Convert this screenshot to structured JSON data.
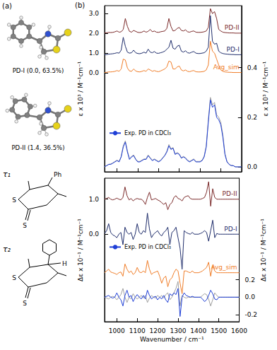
{
  "panel_a": {
    "label": "(a)",
    "conformers": [
      "PD-I (0.0, 63.5%)",
      "PD-II (1.4, 36.5%)"
    ],
    "torsions": [
      {
        "label": "τ₁",
        "atoms": [
          "Ph",
          "S",
          "S"
        ]
      },
      {
        "label": "τ₂",
        "atoms": [
          "H",
          "S",
          "S"
        ]
      }
    ]
  },
  "panel_b_label": "(b)",
  "chart_data": [
    {
      "type": "line",
      "x": [
        940,
        950,
        960,
        970,
        980,
        990,
        1000,
        1010,
        1020,
        1030,
        1040,
        1050,
        1060,
        1070,
        1080,
        1090,
        1100,
        1110,
        1120,
        1130,
        1140,
        1150,
        1160,
        1170,
        1180,
        1190,
        1200,
        1210,
        1220,
        1230,
        1240,
        1250,
        1260,
        1270,
        1280,
        1290,
        1300,
        1310,
        1320,
        1330,
        1340,
        1350,
        1360,
        1370,
        1380,
        1390,
        1400,
        1410,
        1420,
        1430,
        1440,
        1450,
        1460,
        1470,
        1480,
        1490,
        1500,
        1510,
        1520,
        1530,
        1540,
        1550,
        1560,
        1570,
        1580,
        1590,
        1600
      ],
      "xlim": [
        940,
        1600
      ],
      "xticks": [
        1000,
        1100,
        1200,
        1300,
        1400,
        1500,
        1600
      ],
      "ylim": [
        -5.0,
        3.4
      ],
      "yticks": [
        {
          "value": 0,
          "label": "0.0"
        },
        {
          "value": 1,
          "label": "1.0"
        },
        {
          "value": 2,
          "label": "2.0"
        },
        {
          "value": 3,
          "label": "3.0"
        }
      ],
      "y2lim": [
        -0.02,
        0.65
      ],
      "y2ticks": [
        {
          "value": 0,
          "label": "0.0"
        },
        {
          "value": 0.2,
          "label": "0.2"
        },
        {
          "value": 0.4,
          "label": "0.4"
        }
      ],
      "ylabel": "ε x 10³ / M⁻¹cm⁻¹",
      "y2label": "ε x 10³ / M⁻¹cm⁻¹",
      "tick_labels": "y",
      "grid": false,
      "legend": "lower left",
      "series": [
        {
          "name": "PD-II",
          "color": "#7b2a2a",
          "values": [
            2.02,
            2.03,
            2.05,
            2.04,
            2.05,
            2.08,
            2.12,
            2.06,
            2.08,
            2.2,
            2.75,
            2.35,
            2.1,
            2.06,
            2.15,
            2.1,
            2.05,
            2.04,
            2.06,
            2.12,
            2.06,
            2.1,
            2.2,
            2.08,
            2.12,
            2.06,
            2.05,
            2.08,
            2.1,
            2.12,
            2.25,
            2.75,
            2.35,
            2.12,
            2.15,
            2.25,
            2.3,
            2.15,
            2.12,
            2.18,
            2.08,
            2.06,
            2.1,
            2.12,
            2.06,
            2.05,
            2.05,
            2.06,
            2.08,
            2.12,
            2.3,
            3.25,
            3.0,
            3.1,
            2.75,
            2.2,
            2.12,
            2.06,
            2.04,
            2.03,
            2.02,
            2.02,
            2.02,
            2.01,
            2.01,
            2.01,
            2.01
          ]
        },
        {
          "name": "PD-I",
          "color": "#1f2d6b",
          "values": [
            0.92,
            0.93,
            0.95,
            0.96,
            0.97,
            0.99,
            1.02,
            1.0,
            1.15,
            1.8,
            1.35,
            1.05,
            1.0,
            1.02,
            1.15,
            1.02,
            0.98,
            0.97,
            1.0,
            1.05,
            1.0,
            1.2,
            1.05,
            1.02,
            1.08,
            1.0,
            0.99,
            1.02,
            1.05,
            1.1,
            1.2,
            1.3,
            1.65,
            1.25,
            1.2,
            1.35,
            1.4,
            1.1,
            1.05,
            1.12,
            1.02,
            1.0,
            1.05,
            1.08,
            1.0,
            0.98,
            0.98,
            1.0,
            1.02,
            1.1,
            1.3,
            2.9,
            1.6,
            1.45,
            1.5,
            1.1,
            1.02,
            0.98,
            0.96,
            0.95,
            0.94,
            0.93,
            0.93,
            0.92,
            0.92,
            0.92,
            0.92
          ]
        },
        {
          "name": "Avg_sim",
          "color": "#f07d28",
          "values": [
            0.02,
            0.03,
            0.05,
            0.05,
            0.06,
            0.08,
            0.12,
            0.08,
            0.2,
            0.7,
            0.65,
            0.25,
            0.1,
            0.08,
            0.2,
            0.1,
            0.06,
            0.05,
            0.08,
            0.12,
            0.08,
            0.2,
            0.15,
            0.08,
            0.12,
            0.08,
            0.06,
            0.1,
            0.15,
            0.2,
            0.3,
            0.6,
            0.55,
            0.2,
            0.2,
            0.3,
            0.35,
            0.15,
            0.1,
            0.15,
            0.08,
            0.06,
            0.1,
            0.12,
            0.06,
            0.05,
            0.05,
            0.06,
            0.08,
            0.15,
            0.4,
            1.6,
            1.1,
            1.0,
            0.7,
            0.4,
            0.15,
            0.08,
            0.05,
            0.04,
            0.03,
            0.03,
            0.02,
            0.02,
            0.02,
            0.02,
            0.02
          ]
        },
        {
          "color": "#a0a0a0",
          "axis": "y2",
          "values": [
            0.0,
            0.005,
            0.01,
            0.012,
            0.016,
            0.022,
            0.027,
            0.022,
            0.042,
            0.085,
            0.105,
            0.065,
            0.032,
            0.042,
            0.048,
            0.032,
            0.022,
            0.022,
            0.027,
            0.032,
            0.032,
            0.048,
            0.037,
            0.027,
            0.032,
            0.027,
            0.022,
            0.027,
            0.037,
            0.047,
            0.063,
            0.09,
            0.073,
            0.078,
            0.052,
            0.058,
            0.052,
            0.037,
            0.042,
            0.037,
            0.027,
            0.022,
            0.027,
            0.032,
            0.022,
            0.022,
            0.022,
            0.027,
            0.043,
            0.085,
            0.19,
            0.28,
            0.25,
            0.26,
            0.21,
            0.2,
            0.18,
            0.13,
            0.055,
            0.022,
            0.011,
            0.006,
            0.005,
            0.0,
            0.0,
            0.0,
            0.0
          ]
        },
        {
          "name": "Exp. PD in CDCl₃",
          "color": "#1f3fd6",
          "axis": "y2",
          "values": [
            0.0,
            0.005,
            0.01,
            0.01,
            0.015,
            0.02,
            0.025,
            0.02,
            0.04,
            0.08,
            0.1,
            0.06,
            0.03,
            0.04,
            0.045,
            0.03,
            0.02,
            0.02,
            0.025,
            0.03,
            0.03,
            0.045,
            0.035,
            0.025,
            0.03,
            0.025,
            0.02,
            0.025,
            0.035,
            0.045,
            0.06,
            0.085,
            0.07,
            0.075,
            0.05,
            0.055,
            0.05,
            0.035,
            0.04,
            0.035,
            0.025,
            0.02,
            0.025,
            0.03,
            0.02,
            0.02,
            0.02,
            0.025,
            0.04,
            0.08,
            0.18,
            0.27,
            0.24,
            0.25,
            0.2,
            0.19,
            0.17,
            0.12,
            0.05,
            0.02,
            0.01,
            0.005,
            0.005,
            0.0,
            0.0,
            0.0,
            0.0
          ]
        }
      ]
    },
    {
      "type": "line",
      "x": [
        940,
        950,
        960,
        970,
        980,
        990,
        1000,
        1010,
        1020,
        1030,
        1040,
        1050,
        1060,
        1070,
        1080,
        1090,
        1100,
        1110,
        1120,
        1130,
        1140,
        1150,
        1160,
        1170,
        1180,
        1190,
        1200,
        1210,
        1220,
        1230,
        1240,
        1250,
        1260,
        1270,
        1280,
        1290,
        1300,
        1310,
        1320,
        1330,
        1340,
        1350,
        1360,
        1370,
        1380,
        1390,
        1400,
        1410,
        1420,
        1430,
        1440,
        1450,
        1460,
        1470,
        1480,
        1490,
        1500,
        1510,
        1520,
        1530,
        1540,
        1550,
        1560,
        1570,
        1580,
        1590,
        1600
      ],
      "xlim": [
        940,
        1600
      ],
      "xticks": [
        1000,
        1100,
        1200,
        1300,
        1400,
        1500,
        1600
      ],
      "xlabel": "Wavenumber / cm⁻¹",
      "ylim": [
        -2.5,
        1.6
      ],
      "yticks": [
        {
          "value": 0,
          "label": "0.0"
        },
        {
          "value": 1,
          "label": "1.0"
        }
      ],
      "y2lim": [
        -0.28,
        1.36
      ],
      "y2ticks": [
        {
          "value": -0.2,
          "label": "-0.2"
        },
        {
          "value": 0,
          "label": "0.0"
        },
        {
          "value": 0.2,
          "label": "0.2"
        }
      ],
      "ylabel": "Δε x 10⁻¹ / M⁻¹cm⁻¹",
      "y2label": "Δε x 10⁻¹ / M⁻¹cm⁻¹",
      "grid": false,
      "legend": "left",
      "series": [
        {
          "name": "PD-II",
          "color": "#7b2a2a",
          "values": [
            1.0,
            1.02,
            1.05,
            1.0,
            0.98,
            1.0,
            1.03,
            1.0,
            0.98,
            1.05,
            1.35,
            1.1,
            0.98,
            1.02,
            0.95,
            1.0,
            1.02,
            1.0,
            1.0,
            0.95,
            0.85,
            1.05,
            1.2,
            0.98,
            1.0,
            1.02,
            0.98,
            0.95,
            0.9,
            0.85,
            0.9,
            0.7,
            0.85,
            0.9,
            1.05,
            1.1,
            1.02,
            1.0,
            0.95,
            1.05,
            1.08,
            1.1,
            1.02,
            1.0,
            1.0,
            1.0,
            1.0,
            1.0,
            1.02,
            1.05,
            1.2,
            1.5,
            0.8,
            1.3,
            1.05,
            1.0,
            1.0,
            1.0,
            1.0,
            1.0,
            1.0,
            1.0,
            1.0,
            1.0,
            1.0,
            1.0,
            1.0
          ]
        },
        {
          "name": "PD-I",
          "color": "#1f2d6b",
          "values": [
            0.02,
            0.1,
            0.3,
            0.05,
            -0.02,
            -0.05,
            -0.1,
            0.0,
            0.05,
            -0.3,
            0.2,
            0.05,
            0.0,
            0.05,
            -0.15,
            0.0,
            0.3,
            0.05,
            0.0,
            0.1,
            0.05,
            0.6,
            0.15,
            -0.1,
            0.0,
            0.05,
            0.1,
            0.0,
            -0.05,
            0.05,
            0.1,
            0.2,
            -0.3,
            0.05,
            0.1,
            0.2,
            -0.1,
            -0.4,
            -1.0,
            0.1,
            0.05,
            0.02,
            0.0,
            0.05,
            0.0,
            0.0,
            0.0,
            0.02,
            0.05,
            0.1,
            0.05,
            -0.2,
            0.1,
            0.4,
            -0.1,
            0.02,
            0.0,
            0.0,
            0.0,
            0.0,
            0.0,
            0.0,
            0.0,
            0.0,
            0.0,
            0.0,
            0.0
          ]
        },
        {
          "name": "Avg_sim",
          "color": "#f07d28",
          "values": [
            -1.1,
            -1.05,
            -1.0,
            -1.08,
            -1.1,
            -1.12,
            -1.15,
            -1.1,
            -1.08,
            -1.2,
            -0.85,
            -1.0,
            -1.1,
            -1.05,
            -1.15,
            -1.1,
            -0.95,
            -1.08,
            -1.1,
            -1.05,
            -1.1,
            -0.75,
            -1.0,
            -1.15,
            -1.1,
            -1.08,
            -1.05,
            -1.2,
            -1.4,
            -1.25,
            -1.2,
            -1.5,
            -1.3,
            -1.25,
            -1.1,
            -1.0,
            -1.05,
            -1.4,
            -1.7,
            -1.05,
            -1.05,
            -1.08,
            -1.1,
            -1.05,
            -1.1,
            -1.1,
            -1.1,
            -1.08,
            -1.05,
            -1.0,
            -0.95,
            -0.8,
            -1.2,
            -0.9,
            -1.05,
            -1.1,
            -1.1,
            -1.1,
            -1.1,
            -1.1,
            -1.1,
            -1.1,
            -1.1,
            -1.1,
            -1.1,
            -1.1,
            -1.1
          ]
        },
        {
          "color": "#a0a0a0",
          "axis": "y2",
          "values": [
            0.0,
            -0.01,
            -0.02,
            0.0,
            0.01,
            0.0,
            -0.03,
            0.0,
            0.03,
            0.1,
            0.0,
            -0.06,
            0.0,
            -0.02,
            0.04,
            0.0,
            -0.02,
            0.0,
            0.02,
            -0.01,
            0.02,
            -0.06,
            -0.01,
            0.02,
            0.0,
            -0.01,
            0.02,
            0.0,
            0.02,
            -0.01,
            0.03,
            0.05,
            -0.03,
            0.0,
            0.05,
            0.1,
            0.18,
            -0.1,
            0.02,
            0.0,
            -0.01,
            0.0,
            0.0,
            0.0,
            0.0,
            0.0,
            0.0,
            0.0,
            0.02,
            0.04,
            0.03,
            -0.02,
            -0.1,
            -0.03,
            0.05,
            0.02,
            0.0,
            0.0,
            0.0,
            0.0,
            0.0,
            0.0,
            0.0,
            0.0,
            0.0,
            0.0,
            0.0
          ]
        },
        {
          "name": "Exp. PD in CDCl₃",
          "color": "#1f3fd6",
          "axis": "y2",
          "values": [
            0.0,
            0.01,
            0.02,
            0.0,
            -0.01,
            0.0,
            0.05,
            0.0,
            -0.03,
            -0.1,
            0.02,
            0.08,
            0.0,
            0.02,
            -0.05,
            0.0,
            0.03,
            0.0,
            -0.02,
            0.02,
            -0.02,
            0.08,
            0.02,
            -0.02,
            0.0,
            0.01,
            -0.03,
            0.0,
            -0.02,
            0.02,
            -0.03,
            -0.06,
            0.04,
            0.02,
            0.05,
            0.03,
            0.1,
            -0.22,
            0.0,
            0.05,
            0.02,
            0.01,
            0.0,
            0.01,
            0.0,
            0.0,
            0.0,
            0.0,
            -0.02,
            -0.05,
            -0.03,
            0.02,
            0.08,
            0.04,
            -0.02,
            -0.03,
            0.0,
            0.0,
            0.0,
            0.0,
            0.0,
            0.0,
            0.0,
            0.0,
            0.0,
            0.0,
            0.0
          ]
        }
      ]
    }
  ]
}
